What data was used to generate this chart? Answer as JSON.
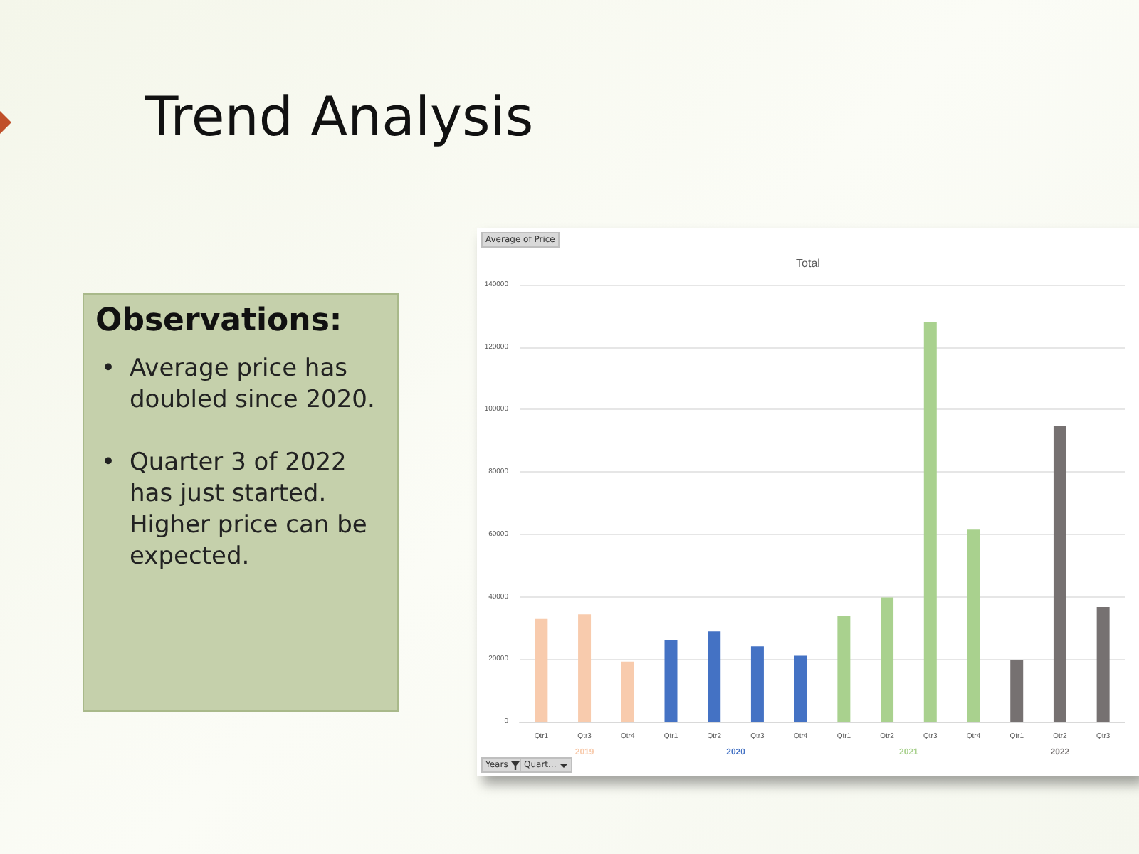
{
  "chart_data": {
    "type": "bar",
    "title": "Trend Analysis",
    "subtitle": "Total",
    "categories": [
      "Qtr1",
      "Qtr3",
      "Qtr4",
      "Qtr1",
      "Qtr2",
      "Qtr3",
      "Qtr4",
      "Qtr1",
      "Qtr2",
      "Qtr3",
      "Qtr4",
      "Qtr1",
      "Qtr2",
      "Qtr3"
    ],
    "series": [
      {
        "name": "2019",
        "color": "#f8cbad",
        "values": [
          32900,
          34400,
          19200,
          null,
          null,
          null,
          null,
          null,
          null,
          null,
          null,
          null,
          null,
          null
        ]
      },
      {
        "name": "2020",
        "color": "#4472c4",
        "values": [
          null,
          null,
          null,
          26100,
          28900,
          24100,
          21100,
          null,
          null,
          null,
          null,
          null,
          null,
          null
        ]
      },
      {
        "name": "2021",
        "color": "#a9d18e",
        "values": [
          null,
          null,
          null,
          null,
          null,
          null,
          null,
          33900,
          39800,
          128000,
          61500,
          null,
          null,
          null
        ]
      },
      {
        "name": "2022",
        "color": "#767171",
        "values": [
          null,
          null,
          null,
          null,
          null,
          null,
          null,
          null,
          null,
          null,
          null,
          19700,
          94700,
          36700
        ]
      }
    ],
    "ylim": [
      0,
      140000
    ],
    "yticks": [
      0,
      20000,
      40000,
      60000,
      80000,
      100000,
      120000,
      140000
    ],
    "grid": "y",
    "legend": false,
    "annotations": [
      "Average of Price",
      "Years",
      "Quart...",
      "Observations:",
      "• Average price has doubled since 2020.",
      "• Quarter 3 of 2022 has just started. Higher price can be expected."
    ]
  }
}
